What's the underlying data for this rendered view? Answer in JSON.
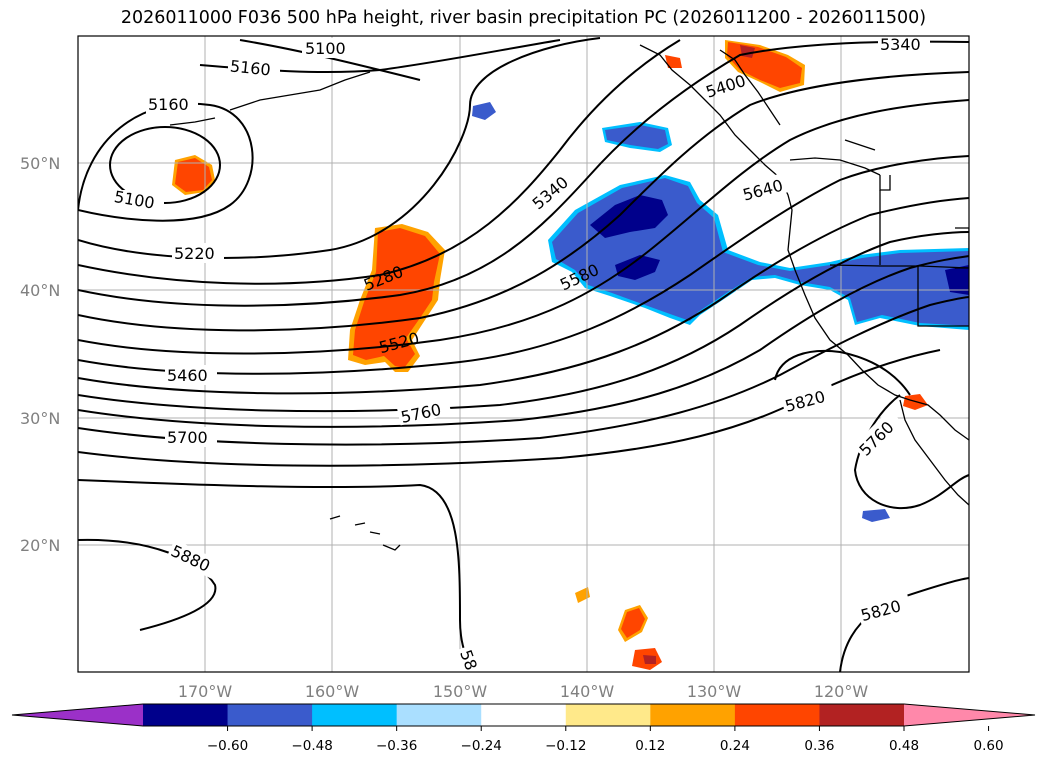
{
  "title": "2026011000 F036 500 hPa height, river basin precipitation PC (2026011200 - 2026011500)",
  "map": {
    "lat_labels": [
      "50°N",
      "40°N",
      "30°N",
      "20°N"
    ],
    "lon_labels": [
      "170°W",
      "160°W",
      "150°W",
      "140°W",
      "130°W",
      "120°W"
    ],
    "contour_labels": [
      {
        "text": "5100"
      },
      {
        "text": "5160"
      },
      {
        "text": "5160"
      },
      {
        "text": "5100"
      },
      {
        "text": "5220"
      },
      {
        "text": "5280"
      },
      {
        "text": "5340"
      },
      {
        "text": "5340"
      },
      {
        "text": "5400"
      },
      {
        "text": "5520"
      },
      {
        "text": "5460"
      },
      {
        "text": "5580"
      },
      {
        "text": "5640"
      },
      {
        "text": "5700"
      },
      {
        "text": "5760"
      },
      {
        "text": "5760"
      },
      {
        "text": "5820"
      },
      {
        "text": "5820"
      },
      {
        "text": "5880"
      },
      {
        "text": "58"
      }
    ]
  },
  "colorbar": {
    "ticks": [
      "−0.60",
      "−0.48",
      "−0.36",
      "−0.24",
      "−0.12",
      "0.12",
      "0.24",
      "0.36",
      "0.48",
      "0.60"
    ],
    "colors": [
      "#9b30c8",
      "#00008b",
      "#3a5bcc",
      "#00bfff",
      "#aadfff",
      "#ffffff",
      "#ffe98a",
      "#ffa200",
      "#ff4500",
      "#b22222",
      "#ff88aa"
    ]
  }
}
